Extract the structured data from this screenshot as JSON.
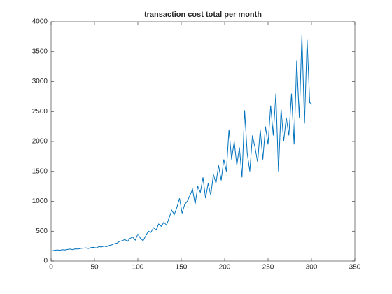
{
  "chart_data": {
    "type": "line",
    "title": "transaction cost total per month",
    "x": [
      1,
      4,
      7,
      10,
      13,
      16,
      19,
      22,
      25,
      28,
      31,
      34,
      37,
      40,
      43,
      46,
      49,
      52,
      55,
      58,
      61,
      64,
      67,
      70,
      73,
      76,
      79,
      82,
      85,
      88,
      91,
      94,
      97,
      100,
      103,
      106,
      109,
      112,
      115,
      118,
      121,
      124,
      127,
      130,
      133,
      136,
      139,
      142,
      145,
      148,
      151,
      154,
      157,
      160,
      163,
      166,
      169,
      172,
      175,
      178,
      181,
      184,
      187,
      190,
      193,
      196,
      199,
      202,
      205,
      208,
      211,
      214,
      217,
      220,
      223,
      226,
      229,
      232,
      235,
      238,
      241,
      244,
      247,
      250,
      253,
      256,
      259,
      262,
      265,
      268,
      271,
      274,
      277,
      280,
      283,
      286,
      289,
      292,
      295,
      298,
      301
    ],
    "values": [
      170,
      180,
      185,
      180,
      190,
      185,
      195,
      200,
      190,
      205,
      200,
      210,
      215,
      220,
      210,
      225,
      230,
      220,
      240,
      235,
      250,
      240,
      260,
      270,
      290,
      300,
      330,
      340,
      360,
      330,
      380,
      400,
      350,
      450,
      380,
      340,
      420,
      500,
      480,
      560,
      520,
      620,
      580,
      650,
      600,
      720,
      850,
      780,
      900,
      1050,
      800,
      950,
      1000,
      1100,
      1200,
      950,
      1250,
      1150,
      1400,
      1050,
      1300,
      1100,
      1450,
      1300,
      1600,
      1350,
      1700,
      1500,
      2200,
      1700,
      2000,
      1600,
      1900,
      1400,
      2520,
      1800,
      1500,
      2100,
      1900,
      1650,
      2200,
      1700,
      2250,
      1950,
      2600,
      2100,
      2800,
      1500,
      2550,
      2000,
      2400,
      2100,
      2800,
      1950,
      3350,
      2400,
      3780,
      2300,
      3700,
      2650,
      2620
    ],
    "color": "#0072bd",
    "xlim": [
      0,
      350
    ],
    "xticks": [
      0,
      50,
      100,
      150,
      200,
      250,
      300,
      350
    ],
    "ylim": [
      0,
      4000
    ],
    "yticks": [
      0,
      500,
      1000,
      1500,
      2000,
      2500,
      3000,
      3500,
      4000
    ]
  }
}
